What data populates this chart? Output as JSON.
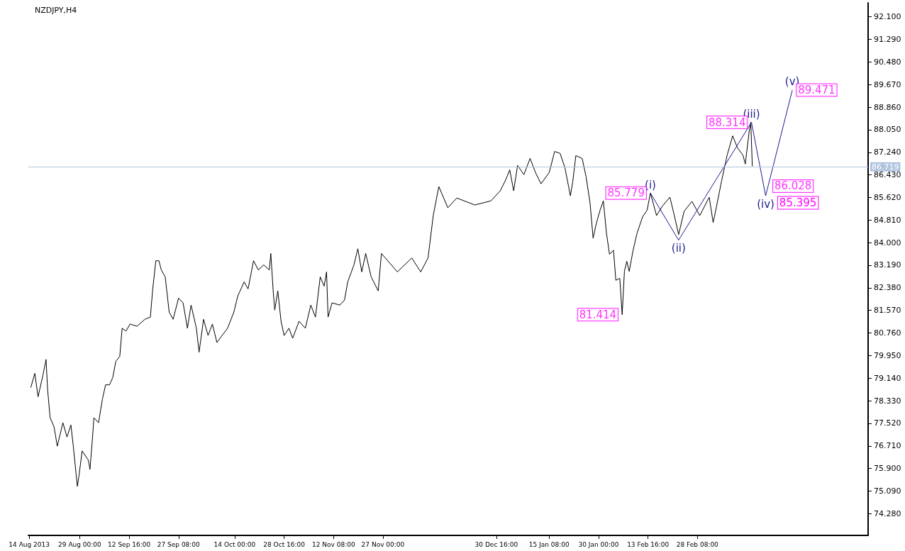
{
  "chart_data": {
    "type": "line",
    "title": "NZDJPY,H4",
    "grid": false,
    "marker": "none",
    "xlim": [
      "2013-08-13T18:00",
      "2014-04-20T00:00"
    ],
    "ylim": [
      73.5,
      92.6
    ],
    "xticks": [
      {
        "value": "2013-08-14T00:00",
        "label": "14 Aug 2013"
      },
      {
        "value": "2013-08-29T00:00",
        "label": "29 Aug 00:00"
      },
      {
        "value": "2013-09-12T16:00",
        "label": "12 Sep 16:00"
      },
      {
        "value": "2013-09-27T08:00",
        "label": "27 Sep 08:00"
      },
      {
        "value": "2013-10-14T00:00",
        "label": "14 Oct 00:00"
      },
      {
        "value": "2013-10-28T16:00",
        "label": "28 Oct 16:00"
      },
      {
        "value": "2013-11-12T08:00",
        "label": "12 Nov 08:00"
      },
      {
        "value": "2013-11-27T00:00",
        "label": "27 Nov 00:00"
      },
      {
        "value": "2013-12-30T16:00",
        "label": "30 Dec 16:00"
      },
      {
        "value": "2014-01-15T08:00",
        "label": "15 Jan 08:00"
      },
      {
        "value": "2014-01-30T00:00",
        "label": "30 Jan 00:00"
      },
      {
        "value": "2014-02-13T16:00",
        "label": "13 Feb 16:00"
      },
      {
        "value": "2014-02-28T08:00",
        "label": "28 Feb 08:00"
      }
    ],
    "yticks": [
      {
        "value": 92.1,
        "label": "92.100"
      },
      {
        "value": 91.29,
        "label": "91.290"
      },
      {
        "value": 90.48,
        "label": "90.480"
      },
      {
        "value": 89.67,
        "label": "89.670"
      },
      {
        "value": 88.86,
        "label": "88.860"
      },
      {
        "value": 88.05,
        "label": "88.050"
      },
      {
        "value": 87.24,
        "label": "87.240"
      },
      {
        "value": 86.43,
        "label": "86.430"
      },
      {
        "value": 85.62,
        "label": "85.620"
      },
      {
        "value": 84.81,
        "label": "84.810"
      },
      {
        "value": 84,
        "label": "84.000"
      },
      {
        "value": 83.19,
        "label": "83.190"
      },
      {
        "value": 82.38,
        "label": "82.380"
      },
      {
        "value": 81.57,
        "label": "81.570"
      },
      {
        "value": 80.76,
        "label": "80.760"
      },
      {
        "value": 79.95,
        "label": "79.950"
      },
      {
        "value": 79.14,
        "label": "79.140"
      },
      {
        "value": 78.33,
        "label": "78.330"
      },
      {
        "value": 77.52,
        "label": "77.520"
      },
      {
        "value": 76.71,
        "label": "76.710"
      },
      {
        "value": 75.9,
        "label": "75.900"
      },
      {
        "value": 75.09,
        "label": "75.090"
      },
      {
        "value": 74.28,
        "label": "74.280"
      }
    ],
    "series": [
      {
        "color": "#000000",
        "x": [
          "2013-08-14T11:00",
          "2013-08-15T16:00",
          "2013-08-16T15:00",
          "2013-08-18T01:00",
          "2013-08-19T00:00",
          "2013-08-19T11:00",
          "2013-08-20T05:00",
          "2013-08-21T09:00",
          "2013-08-22T08:00",
          "2013-08-24T00:00",
          "2013-08-25T05:00",
          "2013-08-26T09:00",
          "2013-08-27T02:00",
          "2013-08-28T07:00",
          "2013-08-28T18:00",
          "2013-08-29T17:00",
          "2013-08-31T13:00",
          "2013-09-01T01:00",
          "2013-09-01T17:00",
          "2013-09-02T05:00",
          "2013-09-03T14:00",
          "2013-09-04T18:00",
          "2013-09-05T16:00",
          "2013-09-06T20:00",
          "2013-09-07T19:00",
          "2013-09-08T17:00",
          "2013-09-09T21:00",
          "2013-09-10T14:00",
          "2013-09-11T18:00",
          "2013-09-12T22:00",
          "2013-09-15T00:00",
          "2013-09-17T08:00",
          "2013-09-18T23:00",
          "2013-09-19T16:00",
          "2013-09-20T14:00",
          "2013-09-21T12:00",
          "2013-09-22T05:00",
          "2013-09-23T09:00",
          "2013-09-24T13:00",
          "2013-09-25T17:00",
          "2013-09-27T08:00",
          "2013-09-28T16:00",
          "2013-09-29T23:00",
          "2013-10-01T01:00",
          "2013-10-02T15:00",
          "2013-10-03T10:00",
          "2013-10-04T18:00",
          "2013-10-06T02:00",
          "2013-10-07T09:00",
          "2013-10-08T17:00",
          "2013-10-11T21:00",
          "2013-10-13T18:00",
          "2013-10-14T22:00",
          "2013-10-16T19:00",
          "2013-10-17T23:00",
          "2013-10-19T14:00",
          "2013-10-21T00:00",
          "2013-10-22T15:00",
          "2013-10-24T06:00",
          "2013-10-24T17:00",
          "2013-10-25T10:00",
          "2013-10-25T21:00",
          "2013-10-26T19:00",
          "2013-10-27T18:00",
          "2013-10-28T16:00",
          "2013-10-30T02:00",
          "2013-10-31T05:00",
          "2013-11-02T02:00",
          "2013-11-03T23:00",
          "2013-11-05T14:00",
          "2013-11-06T23:00",
          "2013-11-08T09:00",
          "2013-11-09T13:00",
          "2013-11-10T06:00",
          "2013-11-10T17:00",
          "2013-11-11T21:00",
          "2013-11-14T05:00",
          "2013-11-15T14:00",
          "2013-11-16T13:00",
          "2013-11-18T09:00",
          "2013-11-19T13:00",
          "2013-11-20T17:00",
          "2013-11-21T21:00",
          "2013-11-23T12:00",
          "2013-11-25T14:00",
          "2013-11-26T13:00",
          "2013-12-01T07:00",
          "2013-12-05T13:00",
          "2013-12-08T05:00",
          "2013-12-10T09:00",
          "2013-12-11T23:00",
          "2013-12-13T14:00",
          "2013-12-16T06:00",
          "2013-12-18T22:00",
          "2013-12-24T06:00",
          "2013-12-29T02:00",
          "2013-12-31T20:00",
          "2014-01-02T11:00",
          "2014-01-03T15:00",
          "2014-01-04T19:00",
          "2014-01-05T23:00",
          "2014-01-07T20:00",
          "2014-01-09T16:00",
          "2014-01-11T07:00",
          "2014-01-12T22:00",
          "2014-01-15T08:00",
          "2014-01-16T23:00",
          "2014-01-18T14:00",
          "2014-01-20T00:00",
          "2014-01-21T15:00",
          "2014-01-22T08:00",
          "2014-01-23T06:00",
          "2014-01-25T03:00",
          "2014-01-26T07:00",
          "2014-01-27T11:00",
          "2014-01-28T09:00",
          "2014-01-29T07:00",
          "2014-01-30T11:00",
          "2014-01-31T10:00",
          "2014-02-01T08:00",
          "2014-02-02T06:00",
          "2014-02-03T10:00",
          "2014-02-04T03:00",
          "2014-02-05T07:00",
          "2014-02-06T00:00",
          "2014-02-06T16:00",
          "2014-02-07T09:00",
          "2014-02-08T02:00",
          "2014-02-09T06:00",
          "2014-02-10T10:00",
          "2014-02-12T01:00",
          "2014-02-13T10:00",
          "2014-02-14T09:00",
          "2014-02-16T05:00",
          "2014-02-17T21:00",
          "2014-02-20T04:00",
          "2014-02-21T08:00",
          "2014-02-22T18:00",
          "2014-02-24T09:00",
          "2014-02-26T17:00",
          "2014-03-01T01:00",
          "2014-03-03T20:00",
          "2014-03-05T00:00",
          "2014-03-05T17:00",
          "2014-03-07T13:00",
          "2014-03-09T04:00",
          "2014-03-10T19:00",
          "2014-03-12T05:00",
          "2014-03-13T20:00",
          "2014-03-14T13:00",
          "2014-03-15T17:00",
          "2014-03-16T04:00",
          "2014-03-16T15:00"
        ],
        "values": [
          78.8,
          79.31,
          78.47,
          79.23,
          79.81,
          78.73,
          77.72,
          77.39,
          76.7,
          77.54,
          77.03,
          77.46,
          76.7,
          75.26,
          75.62,
          76.53,
          76.2,
          75.87,
          76.88,
          77.72,
          77.54,
          78.4,
          78.9,
          78.9,
          79.16,
          79.74,
          79.92,
          80.93,
          80.83,
          81.08,
          81.0,
          81.25,
          81.33,
          82.34,
          83.35,
          83.35,
          83.02,
          82.77,
          81.51,
          81.25,
          82.01,
          81.84,
          80.93,
          81.76,
          80.93,
          80.07,
          81.25,
          80.67,
          81.08,
          80.42,
          80.93,
          81.51,
          82.09,
          82.59,
          82.34,
          83.35,
          83.02,
          83.2,
          83.02,
          83.61,
          82.27,
          81.58,
          82.27,
          81.18,
          80.67,
          80.93,
          80.57,
          81.18,
          80.93,
          81.76,
          81.33,
          82.77,
          82.44,
          82.95,
          81.33,
          81.84,
          81.76,
          81.94,
          82.59,
          83.2,
          83.78,
          82.95,
          83.61,
          82.77,
          82.27,
          83.61,
          82.95,
          83.45,
          82.95,
          83.45,
          85.0,
          86.01,
          85.25,
          85.6,
          85.35,
          85.5,
          85.86,
          86.26,
          86.61,
          85.86,
          86.77,
          86.44,
          87.02,
          86.51,
          86.11,
          86.51,
          87.27,
          87.2,
          86.69,
          85.68,
          86.18,
          87.12,
          87.02,
          86.36,
          85.43,
          84.16,
          84.67,
          85.17,
          85.5,
          84.34,
          83.58,
          83.73,
          82.65,
          82.72,
          81.414,
          82.97,
          83.33,
          82.97,
          83.73,
          84.34,
          84.92,
          85.17,
          85.779,
          84.97,
          85.3,
          85.63,
          85.05,
          84.29,
          85.12,
          85.48,
          84.97,
          85.63,
          84.72,
          85.12,
          86.23,
          87.14,
          87.83,
          87.4,
          87.14,
          86.82,
          88.0,
          88.314,
          86.74
        ]
      },
      {
        "color": "#1c1c8c",
        "x": [
          "2014-02-14T09:00",
          "2014-02-22T18:00",
          "2014-03-16T09:00",
          "2014-03-20T14:00",
          "2014-03-28T12:00"
        ],
        "values": [
          85.779,
          84.09,
          88.314,
          85.68,
          89.471
        ],
        "value_labels": [
          "(i)",
          "(ii)",
          "(iii)",
          "(iv)",
          "(v)"
        ]
      }
    ],
    "ref_lines": [
      {
        "axis": "y",
        "value": 86.719,
        "label": "86.719",
        "color": "#b0c4de"
      }
    ],
    "annotations": [
      {
        "text": "81.414",
        "x": "2014-02-06T00:00",
        "y": 81.414
      },
      {
        "text": "85.779",
        "x": "2014-02-14T09:00",
        "y": 85.779
      },
      {
        "text": "88.314",
        "x": "2014-03-16T09:00",
        "y": 88.314
      },
      {
        "text": "86.028",
        "x": "2014-03-21T12:00",
        "y": 86.028
      },
      "85.395",
      {
        "text": "89.471",
        "x": "2014-03-28T12:00",
        "y": 89.471
      }
    ]
  }
}
